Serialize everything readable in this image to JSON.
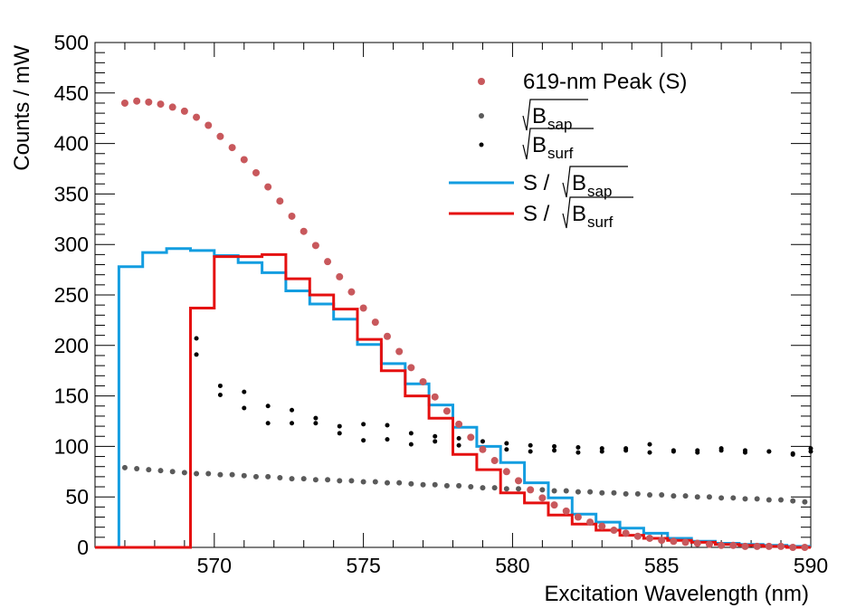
{
  "chart_data": {
    "type": "line",
    "xlabel": "Excitation Wavelength (nm)",
    "ylabel": "Counts / mW",
    "xlim": [
      566,
      590
    ],
    "ylim": [
      0,
      500
    ],
    "x_ticks": [
      570,
      575,
      580,
      585,
      590
    ],
    "y_ticks": [
      0,
      50,
      100,
      150,
      200,
      250,
      300,
      350,
      400,
      450,
      500
    ],
    "grid": false,
    "legend_position": "top-right",
    "legend": [
      {
        "key": "peak",
        "text": "619-nm Peak (S)"
      },
      {
        "key": "bsap",
        "main": "B",
        "sub": "sap"
      },
      {
        "key": "bsurf",
        "main": "B",
        "sub": "surf"
      },
      {
        "key": "s_bsap",
        "prefix": "S / ",
        "main": "B",
        "sub": "sap"
      },
      {
        "key": "s_bsurf",
        "prefix": "S / ",
        "main": "B",
        "sub": "surf"
      }
    ],
    "series": [
      {
        "key": "peak",
        "style": "points",
        "color": "#c8585c",
        "x": [
          567.0,
          567.4,
          567.8,
          568.2,
          568.6,
          569.0,
          569.4,
          569.8,
          570.2,
          570.6,
          571.0,
          571.4,
          571.8,
          572.2,
          572.6,
          573.0,
          573.4,
          573.8,
          574.2,
          574.6,
          575.0,
          575.4,
          575.8,
          576.2,
          576.6,
          577.0,
          577.4,
          577.8,
          578.2,
          578.6,
          579.0,
          579.4,
          579.8,
          580.2,
          580.6,
          581.0,
          581.4,
          581.8,
          582.2,
          582.6,
          583.0,
          583.4,
          583.8,
          584.2,
          584.6,
          585.0,
          585.4,
          585.8,
          586.2,
          586.6,
          587.0,
          587.4,
          587.8,
          588.2,
          588.6,
          589.0,
          589.4,
          589.8
        ],
        "y": [
          440,
          442,
          441,
          439,
          436,
          432,
          426,
          418,
          407,
          396,
          384,
          371,
          357,
          343,
          328,
          313,
          299,
          283,
          268,
          253,
          237,
          223,
          209,
          194,
          178,
          164,
          149,
          135,
          122,
          109,
          97,
          86,
          75,
          66,
          57,
          49,
          42,
          36,
          30,
          25,
          21,
          17,
          14,
          11,
          9,
          7,
          6,
          5,
          4,
          3,
          2,
          2,
          1,
          1,
          1,
          1,
          0,
          0
        ]
      },
      {
        "key": "bsap",
        "style": "points",
        "color": "#5a5a5a",
        "x": [
          567.0,
          567.4,
          567.8,
          568.2,
          568.6,
          569.0,
          569.4,
          569.8,
          570.2,
          570.6,
          571.0,
          571.4,
          571.8,
          572.2,
          572.6,
          573.0,
          573.4,
          573.8,
          574.2,
          574.6,
          575.0,
          575.4,
          575.8,
          576.2,
          576.6,
          577.0,
          577.4,
          577.8,
          578.2,
          578.6,
          579.0,
          579.4,
          579.8,
          580.2,
          580.6,
          581.0,
          581.4,
          581.8,
          582.2,
          582.6,
          583.0,
          583.4,
          583.8,
          584.2,
          584.6,
          585.0,
          585.4,
          585.8,
          586.2,
          586.6,
          587.0,
          587.4,
          587.8,
          588.2,
          588.6,
          589.0,
          589.4,
          589.8
        ],
        "y": [
          79,
          78,
          77,
          76,
          75,
          74,
          73,
          73,
          72,
          72,
          71,
          70,
          70,
          69,
          68,
          68,
          67,
          67,
          66,
          66,
          65,
          65,
          64,
          64,
          63,
          62,
          62,
          61,
          61,
          60,
          59,
          59,
          58,
          58,
          57,
          57,
          56,
          56,
          55,
          55,
          54,
          54,
          53,
          53,
          52,
          52,
          51,
          51,
          50,
          50,
          49,
          49,
          48,
          48,
          47,
          47,
          46,
          45
        ]
      },
      {
        "key": "bsurf",
        "style": "points",
        "color": "#000000",
        "x": [
          569.4,
          569.4,
          570.2,
          570.2,
          571.0,
          571.0,
          571.8,
          571.8,
          572.6,
          572.6,
          573.4,
          573.4,
          574.2,
          574.2,
          575.0,
          575.0,
          575.8,
          575.8,
          576.6,
          576.6,
          577.4,
          577.4,
          578.2,
          578.2,
          579.0,
          579.0,
          579.8,
          579.8,
          580.6,
          580.6,
          581.4,
          581.4,
          582.2,
          582.2,
          583.0,
          583.0,
          583.8,
          583.8,
          584.6,
          584.6,
          585.4,
          585.4,
          586.2,
          586.2,
          587.0,
          587.0,
          587.8,
          587.8,
          588.6,
          588.6,
          589.4,
          589.4,
          590.0,
          590.0
        ],
        "y": [
          207,
          191,
          160,
          151,
          154,
          138,
          140,
          123,
          136,
          123,
          128,
          123,
          120,
          113,
          122,
          106,
          121,
          107,
          113,
          102,
          110,
          105,
          108,
          101,
          105,
          98,
          103,
          97,
          101,
          95,
          100,
          96,
          99,
          94,
          98,
          95,
          98,
          96,
          102,
          94,
          96,
          95,
          96,
          94,
          98,
          96,
          96,
          94,
          95,
          95,
          93,
          92,
          98,
          95
        ]
      },
      {
        "key": "s_bsap",
        "style": "step",
        "color": "#139de0",
        "edges": [
          566.0,
          566.8,
          567.6,
          568.4,
          569.2,
          570.0,
          570.8,
          571.6,
          572.4,
          573.2,
          574.0,
          574.8,
          575.6,
          576.4,
          577.2,
          578.0,
          578.8,
          579.6,
          580.4,
          581.2,
          582.0,
          582.8,
          583.6,
          584.4,
          585.2,
          586.0,
          586.8,
          587.6,
          588.4,
          589.2,
          590.0
        ],
        "values": [
          0,
          278,
          292,
          296,
          294,
          289,
          282,
          272,
          254,
          241,
          226,
          201,
          182,
          162,
          141,
          119,
          100,
          84,
          64,
          49,
          33,
          25,
          19,
          14,
          9,
          6,
          4,
          3,
          2,
          1
        ]
      },
      {
        "key": "s_bsurf",
        "style": "step",
        "color": "#e51010",
        "edges": [
          566.0,
          566.8,
          567.6,
          568.4,
          569.2,
          570.0,
          570.8,
          571.6,
          572.4,
          573.2,
          574.0,
          574.8,
          575.6,
          576.4,
          577.2,
          578.0,
          578.8,
          579.6,
          580.4,
          581.2,
          582.0,
          582.8,
          583.6,
          584.4,
          585.2,
          586.0,
          586.8,
          587.6,
          588.4,
          589.2,
          590.0
        ],
        "values": [
          0,
          0,
          0,
          0,
          237,
          288,
          288,
          290,
          266,
          250,
          236,
          206,
          175,
          150,
          128,
          92,
          77,
          54,
          44,
          32,
          23,
          17,
          12,
          9,
          7,
          5,
          3,
          2,
          1,
          0
        ]
      }
    ]
  }
}
